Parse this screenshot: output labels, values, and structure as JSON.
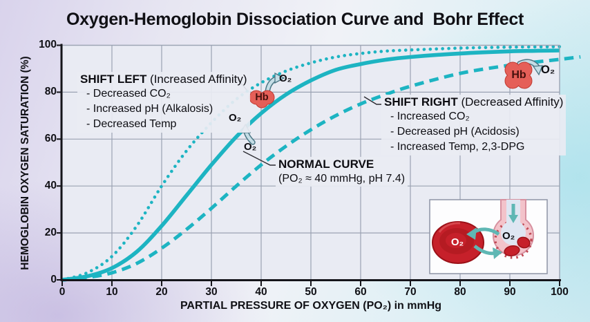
{
  "chart_data": {
    "type": "line",
    "title": "Oxygen-Hemoglobin Dissociation Curve and  Bohr Effect",
    "xlabel": "PARTIAL PRESSURE OF OXYGEN (PO₂) in mmHg",
    "ylabel": "HEMOGLOBIN OXYGEN SATURATION (%)",
    "xlim": [
      0,
      100
    ],
    "ylim": [
      0,
      100
    ],
    "x_ticks": [
      0,
      10,
      20,
      30,
      40,
      50,
      60,
      70,
      80,
      90,
      100
    ],
    "y_ticks": [
      0,
      20,
      40,
      60,
      80,
      100
    ],
    "grid": true,
    "legend": "none",
    "x": [
      0,
      5,
      10,
      15,
      20,
      25,
      30,
      35,
      40,
      45,
      50,
      55,
      60,
      65,
      70,
      80,
      90,
      100
    ],
    "series": [
      {
        "name": "left-shifted curve (increased affinity)",
        "style": "dotted",
        "values": [
          0,
          3,
          10,
          23,
          40,
          55,
          67,
          77,
          84,
          89,
          92.5,
          95,
          96.5,
          97.5,
          98,
          98.8,
          99.2,
          99.4
        ]
      },
      {
        "name": "normal curve",
        "style": "solid",
        "values": [
          0,
          1.5,
          5,
          12,
          23,
          36,
          49,
          61,
          71,
          79,
          85,
          89.5,
          92,
          93.8,
          95,
          96.5,
          97.4,
          97.8
        ]
      },
      {
        "name": "right-shifted curve (decreased affinity)",
        "style": "dashed",
        "values": [
          0,
          1,
          3,
          7,
          13.5,
          21.5,
          30.5,
          40,
          49,
          57,
          64,
          70,
          75,
          79,
          82.5,
          88,
          91.5,
          94
        ]
      }
    ]
  },
  "annotations": {
    "shift_left": {
      "heading": "SHIFT LEFT",
      "heading_suffix": " (Increased Affinity)",
      "items": [
        "- Decreased CO₂",
        "- Increased pH (Alkalosis)",
        "- Decreased Temp"
      ]
    },
    "shift_right": {
      "heading": "SHIFT RIGHT",
      "heading_suffix": " (Decreased Affinity)",
      "items": [
        "- Increased CO₂",
        "- Decreased pH (Acidosis)",
        "- Increased Temp, 2,3-DPG"
      ]
    },
    "normal_curve": {
      "heading": "NORMAL CURVE",
      "sub": "(PO₂ ≈ 40 mmHg, pH 7.4)"
    }
  },
  "labels": {
    "hb": "Hb",
    "o2": "O₂"
  },
  "inset": {
    "rbc_o2": "O₂",
    "alveolus_o2": "O₂"
  },
  "colors": {
    "curve": "#1db4c2",
    "grid": "#9aa2b2",
    "axis": "#15151a",
    "plot_bg": "#e9ebf3",
    "hb_fill": "#e55f58",
    "hb_stroke": "#bf3a31",
    "arrow_fill": "#c5dde6",
    "arrow_stroke": "#4b7785",
    "rbc_red": "#c6202a",
    "rbc_dark": "#9c1118",
    "alveolus_pink": "#f3c3ca",
    "alveolus_rose": "#d791a0",
    "alveolus_inner": "#dfe6f2",
    "inset_teal": "#5fb7b4"
  }
}
